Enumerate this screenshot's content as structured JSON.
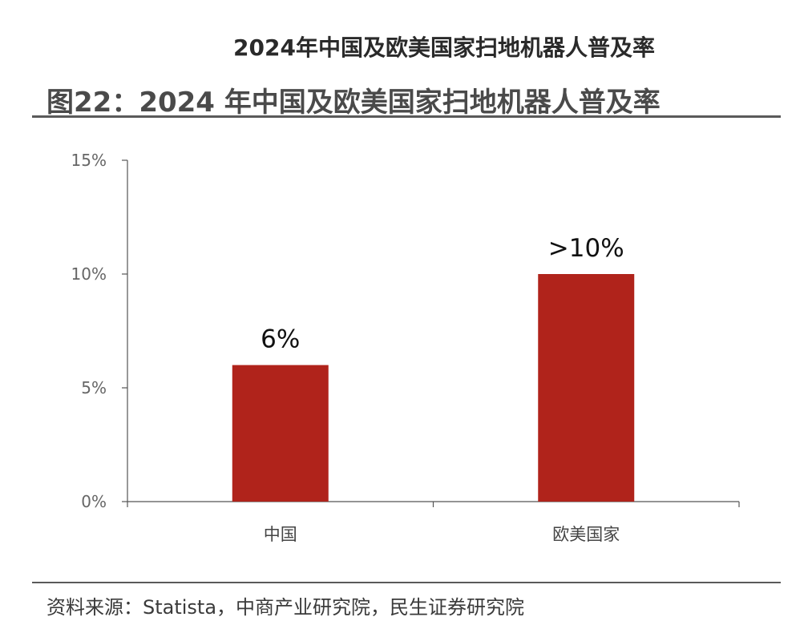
{
  "header": {
    "title": "2024年中国及欧美国家扫地机器人普及率",
    "figure_title": "图22：2024 年中国及欧美国家扫地机器人普及率"
  },
  "footer": {
    "source": "资料来源：Statista，中商产业研究院，民生证券研究院"
  },
  "colors": {
    "bar": "#b0231b",
    "axis": "#555555"
  },
  "chart_data": {
    "type": "bar",
    "title": "2024 年中国及欧美国家扫地机器人普及率",
    "xlabel": "",
    "ylabel": "",
    "categories": [
      "中国",
      "欧美国家"
    ],
    "values": [
      6,
      10
    ],
    "data_labels": [
      "6%",
      ">10%"
    ],
    "ylim": [
      0,
      15
    ],
    "yticks": [
      0,
      5,
      10,
      15
    ],
    "ytick_labels": [
      "0%",
      "5%",
      "10%",
      "15%"
    ],
    "grid": false,
    "legend": "none"
  }
}
